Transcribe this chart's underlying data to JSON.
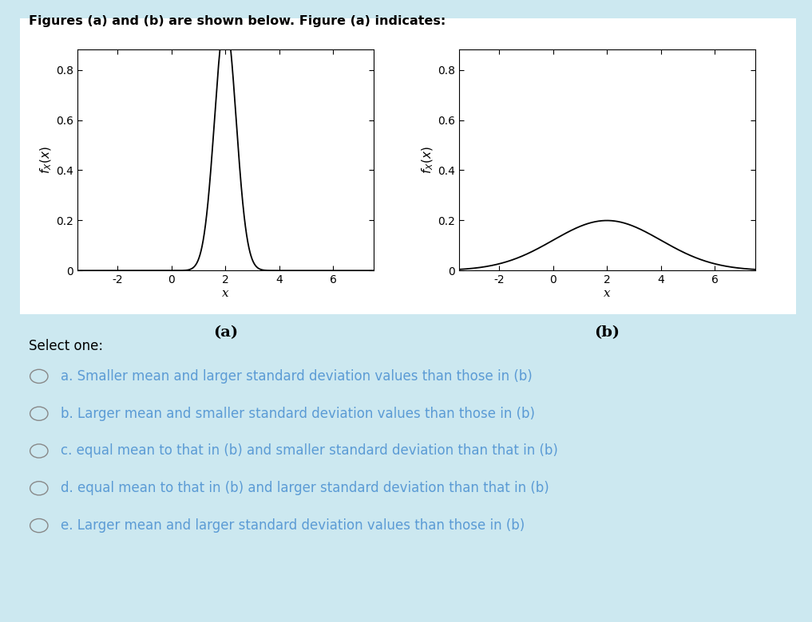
{
  "title": "Figures (a) and (b) are shown below. Figure (a) indicates:",
  "fig_background": "#cce8f0",
  "panel_background": "#ffffff",
  "plot_background": "#ffffff",
  "plot_border_color": "#000000",
  "mean_a": 2.0,
  "std_a": 0.4,
  "mean_b": 2.0,
  "std_b": 2.0,
  "xlim": [
    -3.5,
    7.5
  ],
  "ylim": [
    0,
    0.88
  ],
  "yticks": [
    0,
    0.2,
    0.4,
    0.6,
    0.8
  ],
  "xticks": [
    -2,
    0,
    2,
    4,
    6
  ],
  "xlabel": "x",
  "label_a": "(a)",
  "label_b": "(b)",
  "line_color": "#000000",
  "line_width": 1.3,
  "options": [
    "a. Smaller mean and larger standard deviation values than those in (b)",
    "b. Larger mean and smaller standard deviation values than those in (b)",
    "c. equal mean to that in (b) and smaller standard deviation than that in (b)",
    "d. equal mean to that in (b) and larger standard deviation than that in (b)",
    "e. Larger mean and larger standard deviation values than those in (b)"
  ],
  "select_one_text": "Select one:",
  "option_text_color": "#5b9bd5",
  "select_one_color": "#000000",
  "title_color": "#000000",
  "font_size_title": 11.5,
  "font_size_options": 12,
  "font_size_ticks": 10,
  "font_size_label": 11,
  "font_size_sublabel": 14
}
